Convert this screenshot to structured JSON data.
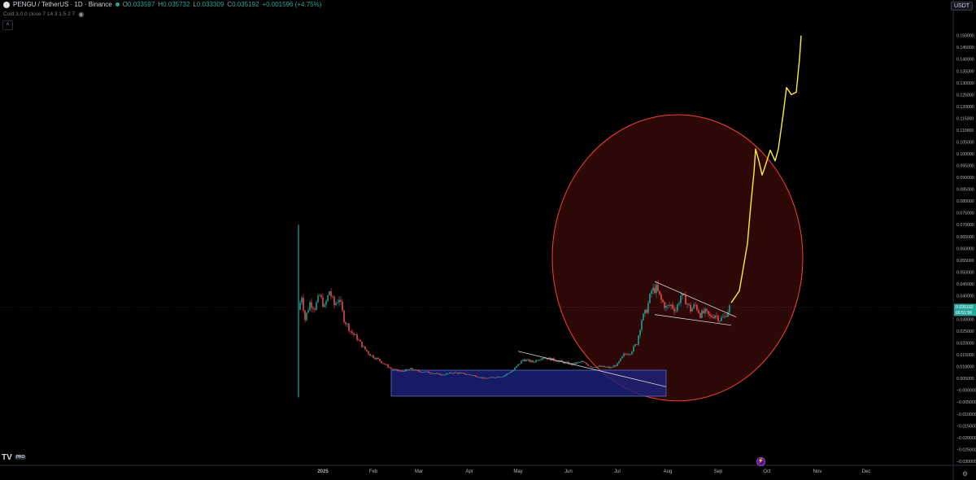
{
  "header": {
    "logo_icon": "pengu-logo-icon",
    "symbol": "PENGU / TetherUS · 1D · Binance",
    "open_label": "O",
    "open": "0.033597",
    "high_label": "H",
    "high": "0.035732",
    "low_label": "L",
    "low": "0.033309",
    "close_label": "C",
    "close": "0.035192",
    "change": "+0.001596 (+4.75%)",
    "colors": {
      "up": "#26a69a",
      "down": "#ef5350"
    }
  },
  "indicator": {
    "text": "Cold 3.0.0 close 7 14 3 1.5 2 7",
    "eye_icon": "eye-icon"
  },
  "currency_button": "USDT",
  "price_label": {
    "value": "0.035192",
    "countdown": "06:51:56"
  },
  "tradingview_logo": "TV",
  "tradingview_pro": "PRO",
  "chart_data": {
    "type": "candlestick",
    "timeframe": "1D",
    "x_ticks": [
      "2025",
      "Feb",
      "Mar",
      "Apr",
      "May",
      "Jun",
      "Jul",
      "Aug",
      "Sep",
      "Oct",
      "Nov",
      "Dec"
    ],
    "y_ticks": [
      "0.150000",
      "0.145000",
      "0.140000",
      "0.135000",
      "0.130000",
      "0.125000",
      "0.120000",
      "0.115000",
      "0.110000",
      "0.105000",
      "0.100000",
      "0.095000",
      "0.090000",
      "0.085000",
      "0.080000",
      "0.075000",
      "0.070000",
      "0.065000",
      "0.060000",
      "0.055000",
      "0.050000",
      "0.045000",
      "0.040000",
      "0.035000",
      "0.030000",
      "0.025000",
      "0.020000",
      "0.015000",
      "0.010000",
      "0.005000",
      "−0.000000",
      "−0.005000",
      "−0.010000",
      "−0.015000",
      "−0.020000",
      "−0.025000",
      "−0.030000"
    ],
    "ylim": [
      -0.031,
      0.154
    ],
    "current_price": 0.035192,
    "price_path": [
      [
        "2024-12-17",
        0.034
      ],
      [
        "2024-12-19",
        0.04
      ],
      [
        "2024-12-21",
        0.03
      ],
      [
        "2024-12-24",
        0.037
      ],
      [
        "2024-12-27",
        0.035
      ],
      [
        "2024-12-30",
        0.04
      ],
      [
        "2025-01-02",
        0.035
      ],
      [
        "2025-01-05",
        0.042
      ],
      [
        "2025-01-08",
        0.036
      ],
      [
        "2025-01-11",
        0.039
      ],
      [
        "2025-01-14",
        0.03
      ],
      [
        "2025-01-18",
        0.025
      ],
      [
        "2025-01-22",
        0.022
      ],
      [
        "2025-01-26",
        0.018
      ],
      [
        "2025-01-30",
        0.015
      ],
      [
        "2025-02-04",
        0.013
      ],
      [
        "2025-02-08",
        0.011
      ],
      [
        "2025-02-12",
        0.009
      ],
      [
        "2025-02-18",
        0.008
      ],
      [
        "2025-02-24",
        0.009
      ],
      [
        "2025-03-01",
        0.008
      ],
      [
        "2025-03-08",
        0.0075
      ],
      [
        "2025-03-15",
        0.0065
      ],
      [
        "2025-03-22",
        0.0075
      ],
      [
        "2025-03-29",
        0.007
      ],
      [
        "2025-04-05",
        0.006
      ],
      [
        "2025-04-10",
        0.005
      ],
      [
        "2025-04-16",
        0.0055
      ],
      [
        "2025-04-22",
        0.006
      ],
      [
        "2025-04-28",
        0.0085
      ],
      [
        "2025-05-04",
        0.013
      ],
      [
        "2025-05-10",
        0.012
      ],
      [
        "2025-05-16",
        0.014
      ],
      [
        "2025-05-22",
        0.013
      ],
      [
        "2025-05-28",
        0.012
      ],
      [
        "2025-06-03",
        0.011
      ],
      [
        "2025-06-09",
        0.012
      ],
      [
        "2025-06-15",
        0.01
      ],
      [
        "2025-06-21",
        0.01
      ],
      [
        "2025-06-27",
        0.0095
      ],
      [
        "2025-07-01",
        0.011
      ],
      [
        "2025-07-05",
        0.015
      ],
      [
        "2025-07-09",
        0.016
      ],
      [
        "2025-07-13",
        0.02
      ],
      [
        "2025-07-16",
        0.03
      ],
      [
        "2025-07-19",
        0.034
      ],
      [
        "2025-07-22",
        0.042
      ],
      [
        "2025-07-25",
        0.043
      ],
      [
        "2025-07-28",
        0.038
      ],
      [
        "2025-07-31",
        0.035
      ],
      [
        "2025-08-03",
        0.036
      ],
      [
        "2025-08-06",
        0.034
      ],
      [
        "2025-08-09",
        0.04
      ],
      [
        "2025-08-12",
        0.038
      ],
      [
        "2025-08-15",
        0.034
      ],
      [
        "2025-08-18",
        0.036
      ],
      [
        "2025-08-21",
        0.032
      ],
      [
        "2025-08-24",
        0.033
      ],
      [
        "2025-08-27",
        0.031
      ],
      [
        "2025-08-30",
        0.032
      ],
      [
        "2025-09-02",
        0.03
      ],
      [
        "2025-09-05",
        0.031
      ],
      [
        "2025-09-08",
        0.035192
      ]
    ],
    "spike": {
      "date": "2024-12-17",
      "high": 0.07,
      "low": -0.003
    },
    "drawings": {
      "accumulation_box": {
        "from": "2025-02-12",
        "to": "2025-07-31",
        "low": -0.0025,
        "high": 0.0085,
        "fill": "#1a237e",
        "stroke": "#5c6bc0"
      },
      "downtrend_line": [
        [
          "2025-05-01",
          0.0165
        ],
        [
          "2025-07-31",
          0.0015
        ]
      ],
      "circle": {
        "cx_date": "2025-08-07",
        "cy": 0.056,
        "rx_days": 77,
        "ry": 0.0605,
        "stroke": "#f44336",
        "fill": "rgba(183,28,28,0.25)"
      },
      "wedge_upper": [
        [
          "2025-07-24",
          0.046
        ],
        [
          "2025-09-12",
          0.031
        ]
      ],
      "wedge_lower": [
        [
          "2025-07-24",
          0.032
        ],
        [
          "2025-09-09",
          0.0275
        ]
      ],
      "projection": {
        "color": "#ffeb3b",
        "points": [
          [
            "2025-09-09",
            0.037
          ],
          [
            "2025-09-14",
            0.042
          ],
          [
            "2025-09-19",
            0.062
          ],
          [
            "2025-09-21",
            0.078
          ],
          [
            "2025-09-23",
            0.092
          ],
          [
            "2025-09-24",
            0.102
          ],
          [
            "2025-09-26",
            0.097
          ],
          [
            "2025-09-28",
            0.091
          ],
          [
            "2025-09-30",
            0.095
          ],
          [
            "2025-10-03",
            0.1015
          ],
          [
            "2025-10-06",
            0.097
          ],
          [
            "2025-10-08",
            0.102
          ],
          [
            "2025-10-11",
            0.117
          ],
          [
            "2025-10-13",
            0.128
          ],
          [
            "2025-10-16",
            0.125
          ],
          [
            "2025-10-19",
            0.126
          ],
          [
            "2025-10-21",
            0.14
          ],
          [
            "2025-10-22",
            0.15
          ]
        ]
      }
    }
  }
}
